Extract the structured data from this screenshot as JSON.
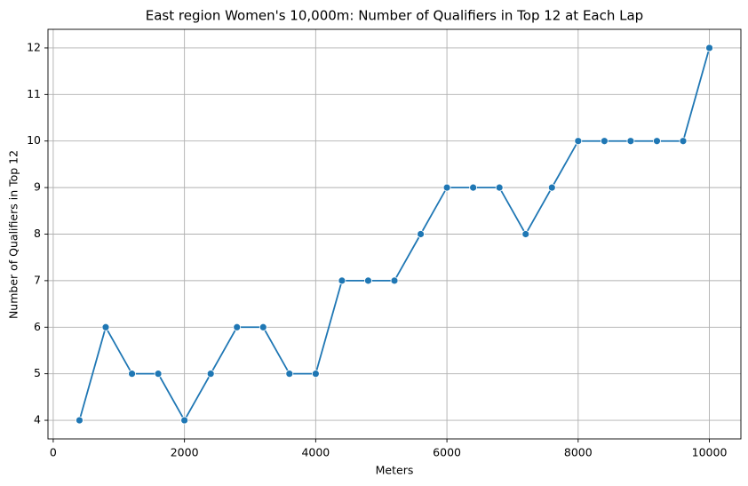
{
  "chart_data": {
    "type": "line",
    "title": "East region Women's 10,000m: Number of Qualifiers in Top 12 at Each Lap",
    "xlabel": "Meters",
    "ylabel": "Number of Qualifiers in Top 12",
    "x": [
      400,
      800,
      1200,
      1600,
      2000,
      2400,
      2800,
      3200,
      3600,
      4000,
      4400,
      4800,
      5200,
      5600,
      6000,
      6400,
      6800,
      7200,
      7600,
      8000,
      8400,
      8800,
      9200,
      9600,
      10000
    ],
    "series": [
      {
        "color": "#1f77b4",
        "values": [
          4,
          6,
          5,
          5,
          4,
          5,
          6,
          6,
          5,
          5,
          7,
          7,
          7,
          8,
          9,
          9,
          9,
          8,
          9,
          10,
          10,
          10,
          10,
          10,
          12
        ]
      }
    ],
    "xlim": [
      -80,
      10480
    ],
    "xticks": [
      0,
      2000,
      4000,
      6000,
      8000,
      10000
    ],
    "ylim": [
      3.6,
      12.4
    ],
    "yticks": [
      4,
      5,
      6,
      7,
      8,
      9,
      10,
      11,
      12
    ],
    "grid": true,
    "markers": true
  }
}
